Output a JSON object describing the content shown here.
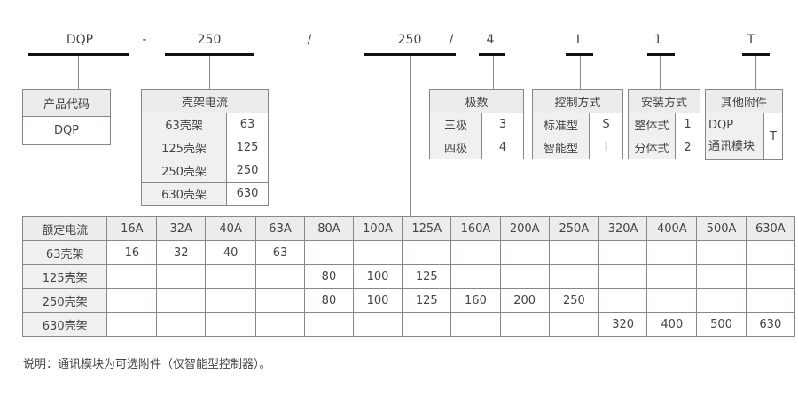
{
  "code": {
    "segments": [
      "DQP",
      "-",
      "250",
      "/",
      "250",
      "/",
      "4",
      "I",
      "1",
      "T"
    ]
  },
  "product_code": {
    "title": "产品代码",
    "value": "DQP"
  },
  "frame_current": {
    "title": "壳架电流",
    "rows": [
      [
        "63壳架",
        "63"
      ],
      [
        "125壳架",
        "125"
      ],
      [
        "250壳架",
        "250"
      ],
      [
        "630壳架",
        "630"
      ]
    ]
  },
  "poles": {
    "title": "极数",
    "rows": [
      [
        "三极",
        "3"
      ],
      [
        "四极",
        "4"
      ]
    ]
  },
  "control": {
    "title": "控制方式",
    "rows": [
      [
        "标准型",
        "S"
      ],
      [
        "智能型",
        "I"
      ]
    ]
  },
  "install": {
    "title": "安装方式",
    "rows": [
      [
        "整体式",
        "1"
      ],
      [
        "分体式",
        "2"
      ]
    ]
  },
  "accessory": {
    "title": "其他附件",
    "label_line1": "DQP",
    "label_line2": "通讯模块",
    "value": "T"
  },
  "rated_table": {
    "headers": [
      "额定电流",
      "16A",
      "32A",
      "40A",
      "63A",
      "80A",
      "100A",
      "125A",
      "160A",
      "200A",
      "250A",
      "320A",
      "400A",
      "500A",
      "630A"
    ],
    "rows": [
      [
        "63壳架",
        "16",
        "32",
        "40",
        "63",
        "",
        "",
        "",
        "",
        "",
        "",
        "",
        "",
        "",
        ""
      ],
      [
        "125壳架",
        "",
        "",
        "",
        "",
        "80",
        "100",
        "125",
        "",
        "",
        "",
        "",
        "",
        "",
        ""
      ],
      [
        "250壳架",
        "",
        "",
        "",
        "",
        "80",
        "100",
        "125",
        "160",
        "200",
        "250",
        "",
        "",
        "",
        ""
      ],
      [
        "630壳架",
        "",
        "",
        "",
        "",
        "",
        "",
        "",
        "",
        "",
        "",
        "320",
        "400",
        "500",
        "630"
      ]
    ]
  },
  "note": "说明：通讯模块为可选附件（仅智能型控制器）。"
}
